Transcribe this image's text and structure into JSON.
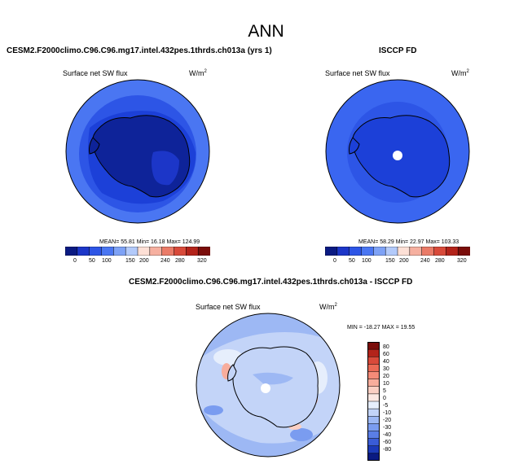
{
  "page_title": "ANN",
  "panels": [
    {
      "case_title": "CESM2.F2000climo.C96.C96.mg17.intel.432pes.1thrds.ch013a (yrs 1)",
      "variable": "Surface net SW flux",
      "units": "W/m",
      "units_sup": "2",
      "stats": "MEAN= 55.81  Min= 16.18  Max= 124.99",
      "colorbar_ticks": [
        "0",
        "50",
        "100",
        "150",
        "200",
        "240",
        "280",
        "320"
      ],
      "colors": [
        "#0a1a82",
        "#1c36c8",
        "#2d55e6",
        "#4a76f2",
        "#7ea2f6",
        "#b3cafa",
        "#fde0d6",
        "#f6b0a0",
        "#ea7b68",
        "#d84a3a",
        "#b3231a",
        "#7a0d0a"
      ]
    },
    {
      "case_title": "ISCCP FD",
      "variable": "Surface net SW flux",
      "units": "W/m",
      "units_sup": "2",
      "stats": "MEAN= 58.29  Min= 22.97  Max= 103.33",
      "colorbar_ticks": [
        "0",
        "50",
        "100",
        "150",
        "200",
        "240",
        "280",
        "320"
      ]
    },
    {
      "case_title": "CESM2.F2000climo.C96.C96.mg17.intel.432pes.1thrds.ch013a - ISCCP FD",
      "variable": "Surface net SW flux",
      "units": "W/m",
      "units_sup": "2",
      "stats": "MIN = -18.27  MAX =  19.55",
      "colorbar_ticks": [
        "80",
        "60",
        "40",
        "30",
        "20",
        "10",
        "5",
        "0",
        "-5",
        "-10",
        "-20",
        "-30",
        "-40",
        "-60",
        "-80"
      ],
      "colors": [
        "#7a0d0a",
        "#b3231a",
        "#d84a3a",
        "#ea6a55",
        "#f48b78",
        "#f8ad9c",
        "#fbcfc3",
        "#fde8e2",
        "#e6eefc",
        "#c3d4f8",
        "#9db8f4",
        "#7a9cf0",
        "#5a7ee6",
        "#3a5cd6",
        "#1c3ab8",
        "#0a1a82"
      ]
    }
  ]
}
